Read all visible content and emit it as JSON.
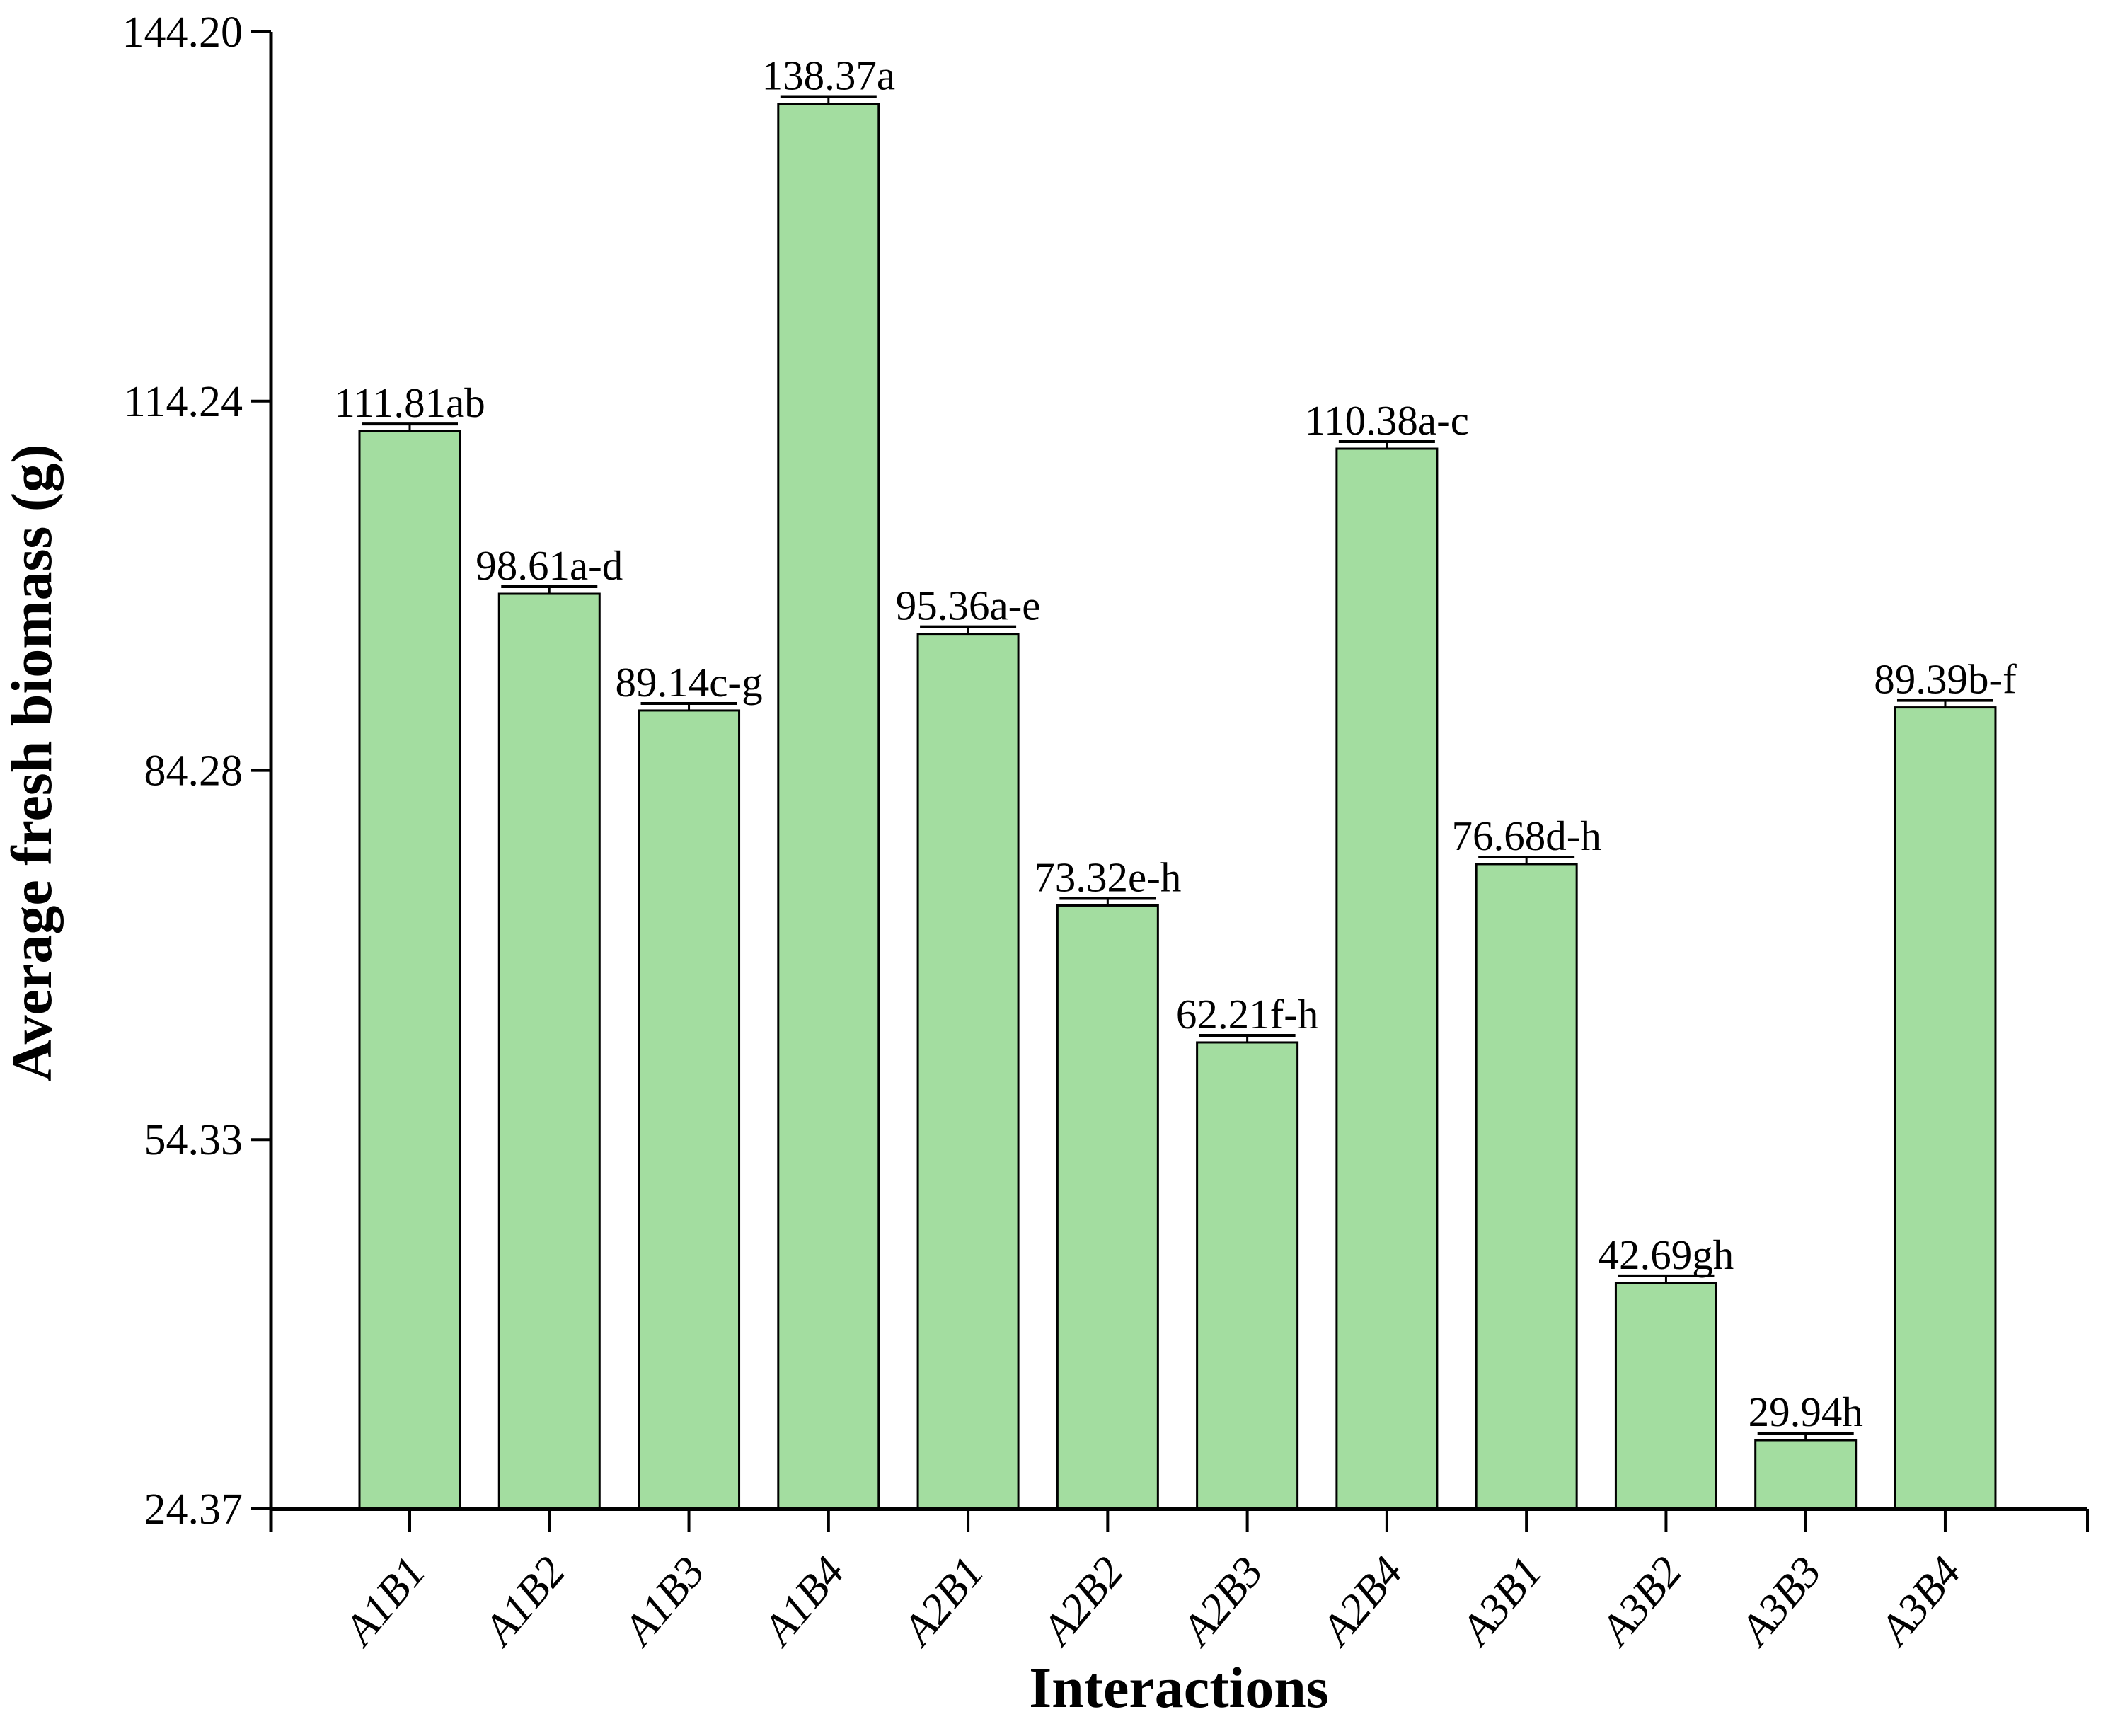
{
  "chart_data": {
    "type": "bar",
    "title": "",
    "xlabel": "Interactions",
    "ylabel": "Average fresh biomass (g)",
    "categories": [
      "A1B1",
      "A1B2",
      "A1B3",
      "A1B4",
      "A2B1",
      "A2B2",
      "A2B3",
      "A2B4",
      "A3B1",
      "A3B2",
      "A3B3",
      "A3B4"
    ],
    "values": [
      111.81,
      98.61,
      89.14,
      138.37,
      95.36,
      73.32,
      62.21,
      110.38,
      76.68,
      42.69,
      29.94,
      89.39
    ],
    "bar_labels": [
      "111.81ab",
      "98.61a-d",
      "89.14c-g",
      "138.37a",
      "95.36a-e",
      "73.32e-h",
      "62.21f-h",
      "110.38a-c",
      "76.68d-h",
      "42.69gh",
      "29.94h",
      "89.39b-f"
    ],
    "significance_letters": [
      "ab",
      "a-d",
      "c-g",
      "a",
      "a-e",
      "e-h",
      "f-h",
      "a-c",
      "d-h",
      "gh",
      "h",
      "b-f"
    ],
    "error_bar_value": 0.6,
    "yticks": [
      144.2,
      114.24,
      84.28,
      54.33,
      24.37
    ],
    "ytick_labels": [
      "144.20",
      "114.24",
      "84.28",
      "54.33",
      "24.37"
    ],
    "ylim": [
      24.37,
      144.2
    ],
    "grid": false,
    "legend": null,
    "bar_color": "#a3dda0",
    "bar_border_color": "#000000",
    "axis_color": "#000000",
    "text_color": "#000000",
    "background_color": "#ffffff"
  }
}
